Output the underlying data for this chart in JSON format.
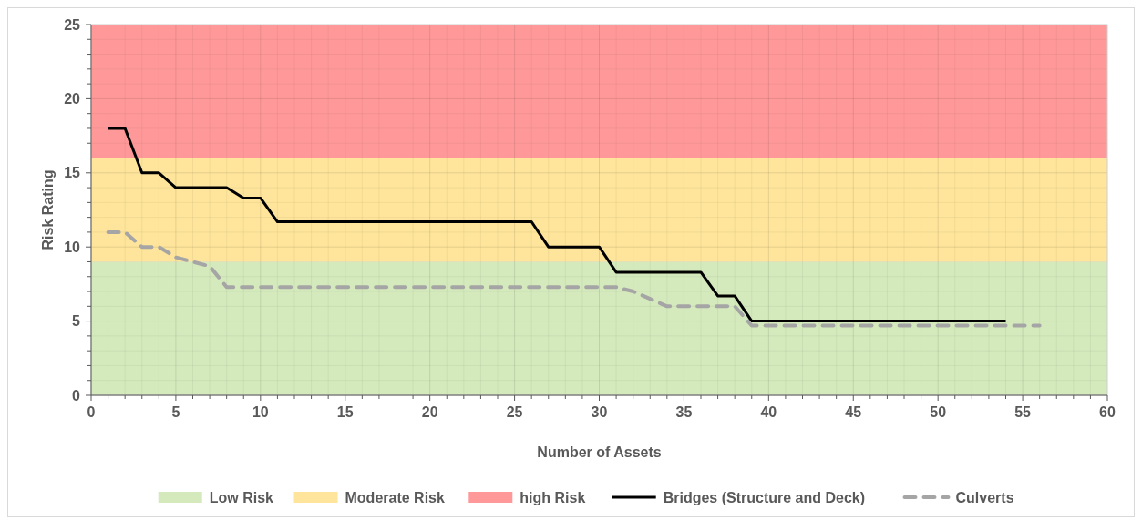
{
  "chart_data": {
    "type": "line",
    "xlabel": "Number of Assets",
    "ylabel": "Risk Rating",
    "xlim": [
      0,
      60
    ],
    "ylim": [
      0,
      25
    ],
    "xticks": [
      0,
      {
        "value": 1,
        "label": null
      },
      {
        "value": 2,
        "label": null
      },
      {
        "value": 3,
        "label": null
      },
      {
        "value": 4,
        "label": null
      },
      5,
      {
        "value": 6,
        "label": null
      },
      {
        "value": 7,
        "label": null
      },
      {
        "value": 8,
        "label": null
      },
      {
        "value": 9,
        "label": null
      },
      10,
      {
        "value": 11,
        "label": null
      },
      {
        "value": 12,
        "label": null
      },
      {
        "value": 13,
        "label": null
      },
      {
        "value": 14,
        "label": null
      },
      15,
      {
        "value": 16,
        "label": null
      },
      {
        "value": 17,
        "label": null
      },
      {
        "value": 18,
        "label": null
      },
      {
        "value": 19,
        "label": null
      },
      20,
      {
        "value": 21,
        "label": null
      },
      {
        "value": 22,
        "label": null
      },
      {
        "value": 23,
        "label": null
      },
      {
        "value": 24,
        "label": null
      },
      25,
      {
        "value": 26,
        "label": null
      },
      {
        "value": 27,
        "label": null
      },
      {
        "value": 28,
        "label": null
      },
      {
        "value": 29,
        "label": null
      },
      30,
      {
        "value": 31,
        "label": null
      },
      {
        "value": 32,
        "label": null
      },
      {
        "value": 33,
        "label": null
      },
      {
        "value": 34,
        "label": null
      },
      35,
      {
        "value": 36,
        "label": null
      },
      {
        "value": 37,
        "label": null
      },
      {
        "value": 38,
        "label": null
      },
      {
        "value": 39,
        "label": null
      },
      40,
      {
        "value": 41,
        "label": null
      },
      {
        "value": 42,
        "label": null
      },
      {
        "value": 43,
        "label": null
      },
      {
        "value": 44,
        "label": null
      },
      45,
      {
        "value": 46,
        "label": null
      },
      {
        "value": 47,
        "label": null
      },
      {
        "value": 48,
        "label": null
      },
      {
        "value": 49,
        "label": null
      },
      50,
      {
        "value": 51,
        "label": null
      },
      {
        "value": 52,
        "label": null
      },
      {
        "value": 53,
        "label": null
      },
      {
        "value": 54,
        "label": null
      },
      55,
      {
        "value": 56,
        "label": null
      },
      {
        "value": 57,
        "label": null
      },
      {
        "value": 58,
        "label": null
      },
      {
        "value": 59,
        "label": null
      },
      60
    ],
    "yticks": [
      0,
      {
        "value": 1,
        "label": null
      },
      {
        "value": 2,
        "label": null
      },
      {
        "value": 3,
        "label": null
      },
      {
        "value": 4,
        "label": null
      },
      5,
      {
        "value": 6,
        "label": null
      },
      {
        "value": 7,
        "label": null
      },
      {
        "value": 8,
        "label": null
      },
      {
        "value": 9,
        "label": null
      },
      10,
      {
        "value": 11,
        "label": null
      },
      {
        "value": 12,
        "label": null
      },
      {
        "value": 13,
        "label": null
      },
      {
        "value": 14,
        "label": null
      },
      15,
      {
        "value": 16,
        "label": null
      },
      {
        "value": 17,
        "label": null
      },
      {
        "value": 18,
        "label": null
      },
      {
        "value": 19,
        "label": null
      },
      20,
      {
        "value": 21,
        "label": null
      },
      {
        "value": 22,
        "label": null
      },
      {
        "value": 23,
        "label": null
      },
      {
        "value": 24,
        "label": null
      },
      25
    ],
    "grid": true,
    "legend": "bottom",
    "bands": [
      {
        "axis": "y",
        "from": 0,
        "to": 9,
        "label": "Low Risk",
        "color": "#d4eabc"
      },
      {
        "axis": "y",
        "from": 9,
        "to": 16,
        "label": "Moderate Risk",
        "color": "#fee59b"
      },
      {
        "axis": "y",
        "from": 16,
        "to": 25,
        "label": "high Risk",
        "color": "#ff9999"
      }
    ],
    "series": [
      {
        "name": "Bridges (Structure and Deck)",
        "color": "#000000",
        "line_style": "solid",
        "x": [
          1,
          2,
          3,
          4,
          5,
          6,
          7,
          8,
          9,
          10,
          11,
          12,
          13,
          14,
          15,
          16,
          17,
          18,
          19,
          20,
          21,
          22,
          23,
          24,
          25,
          26,
          27,
          28,
          29,
          30,
          31,
          32,
          33,
          34,
          35,
          36,
          37,
          38,
          39,
          40,
          41,
          42,
          43,
          44,
          45,
          46,
          47,
          48,
          49,
          50,
          51,
          52,
          53,
          54
        ],
        "values": [
          18,
          18,
          15,
          15,
          14,
          14,
          14,
          14,
          13.3,
          13.3,
          11.7,
          11.7,
          11.7,
          11.7,
          11.7,
          11.7,
          11.7,
          11.7,
          11.7,
          11.7,
          11.7,
          11.7,
          11.7,
          11.7,
          11.7,
          11.7,
          10,
          10,
          10,
          10,
          8.3,
          8.3,
          8.3,
          8.3,
          8.3,
          8.3,
          6.7,
          6.7,
          5,
          5,
          5,
          5,
          5,
          5,
          5,
          5,
          5,
          5,
          5,
          5,
          5,
          5,
          5,
          5
        ]
      },
      {
        "name": "Culverts",
        "color": "#a5a5a5",
        "line_style": "dashed",
        "x": [
          1,
          2,
          3,
          4,
          5,
          6,
          7,
          8,
          9,
          10,
          11,
          12,
          13,
          14,
          15,
          16,
          17,
          18,
          19,
          20,
          21,
          22,
          23,
          24,
          25,
          26,
          27,
          28,
          29,
          30,
          31,
          32,
          33,
          34,
          35,
          36,
          37,
          38,
          39,
          40,
          41,
          42,
          43,
          44,
          45,
          46,
          47,
          48,
          49,
          50,
          51,
          52,
          53,
          54,
          55,
          56
        ],
        "values": [
          11,
          11,
          10,
          10,
          9.3,
          9,
          8.7,
          7.3,
          7.3,
          7.3,
          7.3,
          7.3,
          7.3,
          7.3,
          7.3,
          7.3,
          7.3,
          7.3,
          7.3,
          7.3,
          7.3,
          7.3,
          7.3,
          7.3,
          7.3,
          7.3,
          7.3,
          7.3,
          7.3,
          7.3,
          7.3,
          7,
          6.5,
          6,
          6,
          6,
          6,
          6,
          4.7,
          4.7,
          4.7,
          4.7,
          4.7,
          4.7,
          4.7,
          4.7,
          4.7,
          4.7,
          4.7,
          4.7,
          4.7,
          4.7,
          4.7,
          4.7,
          4.7,
          4.7
        ]
      }
    ]
  }
}
